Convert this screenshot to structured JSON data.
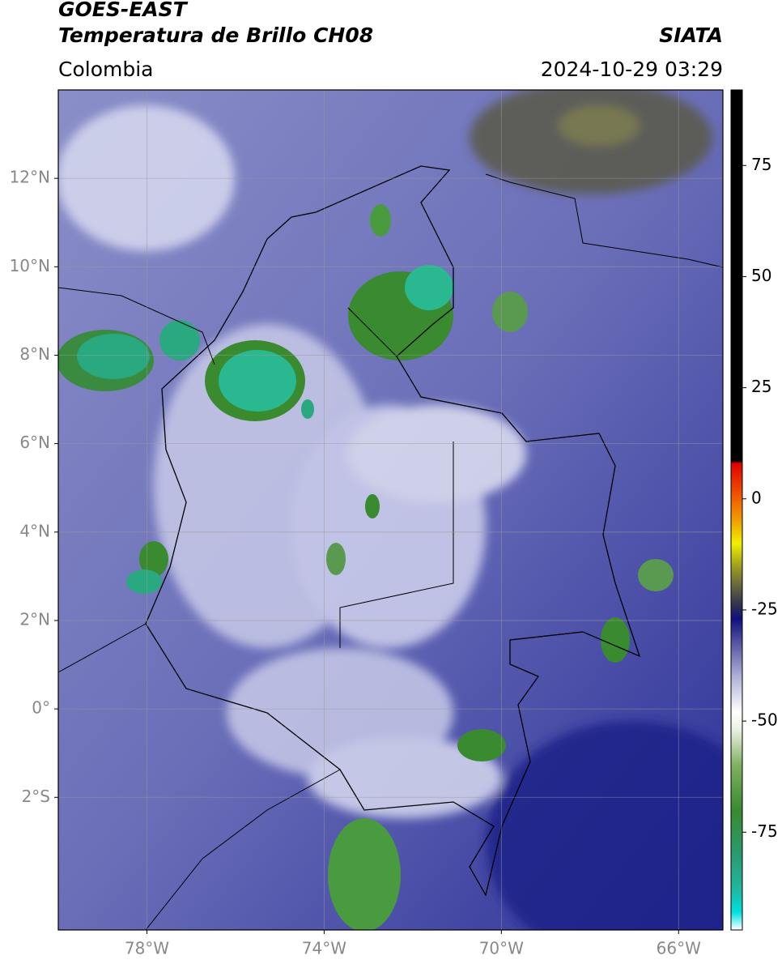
{
  "header": {
    "satellite": "GOES-EAST",
    "title": "Temperatura de Brillo CH08",
    "source": "SIATA",
    "region": "Colombia",
    "datetime": "2024-10-29 03:29"
  },
  "map": {
    "lonlim": [
      -80,
      -65
    ],
    "latlim": [
      -5,
      14
    ],
    "grid": true,
    "xticks": [
      {
        "value": -78,
        "label": "78°W"
      },
      {
        "value": -74,
        "label": "74°W"
      },
      {
        "value": -70,
        "label": "70°W"
      },
      {
        "value": -66,
        "label": "66°W"
      }
    ],
    "yticks": [
      {
        "value": 12,
        "label": "12°N"
      },
      {
        "value": 10,
        "label": "10°N"
      },
      {
        "value": 8,
        "label": "8°N"
      },
      {
        "value": 6,
        "label": "6°N"
      },
      {
        "value": 4,
        "label": "4°N"
      },
      {
        "value": 2,
        "label": "2°N"
      },
      {
        "value": 0,
        "label": "0°"
      },
      {
        "value": -2,
        "label": "2°S"
      }
    ]
  },
  "colorbar": {
    "lim": [
      -97,
      92
    ],
    "ticks": [
      75,
      50,
      25,
      0,
      -25,
      -50,
      -75
    ],
    "stops": [
      {
        "value": -97,
        "color": "#ffffff"
      },
      {
        "value": -93,
        "color": "#00e0e0"
      },
      {
        "value": -88,
        "color": "#20b8a0"
      },
      {
        "value": -80,
        "color": "#2a9a70"
      },
      {
        "value": -70,
        "color": "#3a8a30"
      },
      {
        "value": -60,
        "color": "#80b060"
      },
      {
        "value": -52,
        "color": "#e8f0e0"
      },
      {
        "value": -48,
        "color": "#ffffff"
      },
      {
        "value": -40,
        "color": "#b0b0d8"
      },
      {
        "value": -32,
        "color": "#5050a0"
      },
      {
        "value": -27,
        "color": "#101080"
      },
      {
        "value": -24,
        "color": "#303050"
      },
      {
        "value": -20,
        "color": "#606040"
      },
      {
        "value": -15,
        "color": "#a0a020"
      },
      {
        "value": -10,
        "color": "#f0f000"
      },
      {
        "value": -5,
        "color": "#f0a000"
      },
      {
        "value": 0,
        "color": "#f06000"
      },
      {
        "value": 8,
        "color": "#e00000"
      },
      {
        "value": 8.5,
        "color": "#000000"
      },
      {
        "value": 92,
        "color": "#000000"
      }
    ]
  }
}
